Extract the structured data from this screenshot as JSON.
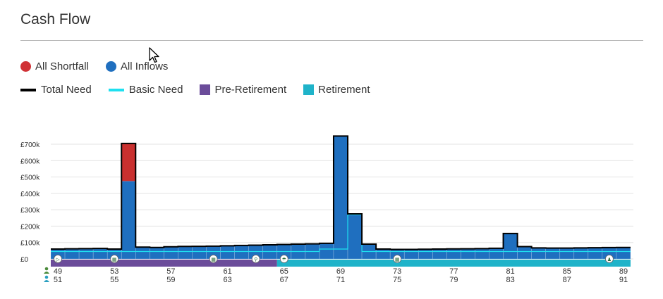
{
  "title": "Cash Flow",
  "legend": {
    "row1": [
      {
        "label": "All Shortfall",
        "color": "#d03236",
        "shape": "circle"
      },
      {
        "label": "All Inflows",
        "color": "#1f6fbf",
        "shape": "circle"
      }
    ],
    "row2": [
      {
        "label": "Total Need",
        "color": "#000000",
        "shape": "line"
      },
      {
        "label": "Basic Need",
        "color": "#1fe0f0",
        "shape": "line"
      },
      {
        "label": "Pre-Retirement",
        "color": "#6b4c9a",
        "shape": "square"
      },
      {
        "label": "Retirement",
        "color": "#1fb3c9",
        "shape": "square"
      }
    ]
  },
  "chart_data": {
    "type": "bar",
    "y_tick_labels": [
      "£0",
      "£100k",
      "£200k",
      "£300k",
      "£400k",
      "£500k",
      "£600k",
      "£700k"
    ],
    "ylim": [
      0,
      750000
    ],
    "ages_primary": [
      49,
      53,
      57,
      61,
      65,
      69,
      73,
      77,
      81,
      85,
      89
    ],
    "ages_secondary": [
      51,
      55,
      59,
      63,
      67,
      71,
      75,
      79,
      83,
      87,
      91
    ],
    "age_start": 49,
    "age_end": 90,
    "retirement_start_age": 65,
    "inflows": [
      60000,
      62000,
      63000,
      64000,
      60000,
      475000,
      72000,
      70000,
      74000,
      76000,
      77000,
      78000,
      80000,
      82000,
      84000,
      86000,
      88000,
      90000,
      92000,
      95000,
      750000,
      275000,
      90000,
      60000,
      58000,
      58000,
      59000,
      60000,
      61000,
      62000,
      63000,
      65000,
      155000,
      75000,
      67000,
      66000,
      66000,
      67000,
      68000,
      69000,
      70000
    ],
    "shortfall": [
      0,
      0,
      0,
      0,
      0,
      230000,
      0,
      0,
      0,
      0,
      0,
      0,
      0,
      0,
      0,
      0,
      0,
      0,
      0,
      0,
      0,
      0,
      0,
      0,
      0,
      0,
      0,
      0,
      0,
      0,
      0,
      0,
      0,
      0,
      0,
      0,
      0,
      0,
      0,
      0,
      0
    ],
    "total_need": [
      60000,
      62000,
      63000,
      64000,
      60000,
      705000,
      72000,
      70000,
      74000,
      76000,
      77000,
      78000,
      80000,
      82000,
      84000,
      86000,
      88000,
      90000,
      92000,
      95000,
      750000,
      275000,
      90000,
      60000,
      58000,
      58000,
      59000,
      60000,
      61000,
      62000,
      63000,
      65000,
      155000,
      75000,
      67000,
      66000,
      66000,
      67000,
      68000,
      69000,
      70000
    ],
    "basic_need": [
      45000,
      45000,
      45000,
      45000,
      45000,
      45000,
      45000,
      45000,
      45000,
      45000,
      45000,
      45000,
      45000,
      45000,
      45000,
      45000,
      45000,
      45000,
      45000,
      60000,
      60000,
      270000,
      45000,
      45000,
      45000,
      45000,
      45000,
      45000,
      45000,
      45000,
      45000,
      45000,
      45000,
      45000,
      45000,
      45000,
      45000,
      45000,
      45000,
      45000,
      45000
    ],
    "event_markers": [
      {
        "age": 49,
        "icon": "play-icon"
      },
      {
        "age": 53,
        "icon": "calendar-icon"
      },
      {
        "age": 60,
        "icon": "calendar-icon"
      },
      {
        "age": 63,
        "icon": "search-icon"
      },
      {
        "age": 65,
        "icon": "sunshade-icon"
      },
      {
        "age": 73,
        "icon": "calendar-icon"
      },
      {
        "age": 88,
        "icon": "person-icon"
      }
    ],
    "colors": {
      "inflow": "#1f6fbf",
      "shortfall": "#c9302f",
      "total_need": "#000000",
      "basic_need": "#1fe0f0",
      "pre_retirement": "#6b4c9a",
      "retirement": "#1fb3c9",
      "grid": "#e3e3e3"
    }
  }
}
